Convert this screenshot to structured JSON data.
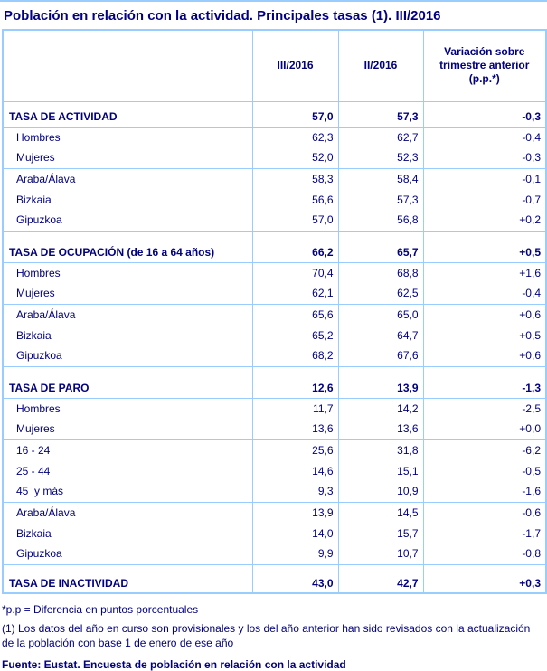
{
  "page": {
    "title": "Población en relación con la actividad. Principales tasas (1). III/2016"
  },
  "table": {
    "col_headers": [
      "III/2016",
      "II/2016",
      "Variación sobre trimestre anterior (p.p.*)"
    ],
    "sections": [
      {
        "header": {
          "label": "TASA DE ACTIVIDAD",
          "values": [
            "57,0",
            "57,3",
            "-0,3"
          ]
        },
        "rows": [
          {
            "label": "Hombres",
            "values": [
              "62,3",
              "62,7",
              "-0,4"
            ],
            "group_end": false
          },
          {
            "label": "Mujeres",
            "values": [
              "52,0",
              "52,3",
              "-0,3"
            ],
            "group_end": true
          },
          {
            "label": "Araba/Álava",
            "values": [
              "58,3",
              "58,4",
              "-0,1"
            ],
            "group_end": false
          },
          {
            "label": "Bizkaia",
            "values": [
              "56,6",
              "57,3",
              "-0,7"
            ],
            "group_end": false
          },
          {
            "label": "Gipuzkoa",
            "values": [
              "57,0",
              "56,8",
              "+0,2"
            ],
            "group_end": true
          }
        ]
      },
      {
        "header": {
          "label": "TASA DE OCUPACIÓN (de 16 a 64 años)",
          "values": [
            "66,2",
            "65,7",
            "+0,5"
          ]
        },
        "rows": [
          {
            "label": "Hombres",
            "values": [
              "70,4",
              "68,8",
              "+1,6"
            ],
            "group_end": false
          },
          {
            "label": "Mujeres",
            "values": [
              "62,1",
              "62,5",
              "-0,4"
            ],
            "group_end": true
          },
          {
            "label": "Araba/Álava",
            "values": [
              "65,6",
              "65,0",
              "+0,6"
            ],
            "group_end": false
          },
          {
            "label": "Bizkaia",
            "values": [
              "65,2",
              "64,7",
              "+0,5"
            ],
            "group_end": false
          },
          {
            "label": "Gipuzkoa",
            "values": [
              "68,2",
              "67,6",
              "+0,6"
            ],
            "group_end": true
          }
        ]
      },
      {
        "header": {
          "label": "TASA DE PARO",
          "values": [
            "12,6",
            "13,9",
            "-1,3"
          ]
        },
        "rows": [
          {
            "label": "Hombres",
            "values": [
              "11,7",
              "14,2",
              "-2,5"
            ],
            "group_end": false
          },
          {
            "label": "Mujeres",
            "values": [
              "13,6",
              "13,6",
              "+0,0"
            ],
            "group_end": true
          },
          {
            "label": "16 - 24",
            "values": [
              "25,6",
              "31,8",
              "-6,2"
            ],
            "group_end": false
          },
          {
            "label": "25 - 44",
            "values": [
              "14,6",
              "15,1",
              "-0,5"
            ],
            "group_end": false
          },
          {
            "label": "45  y más",
            "values": [
              "9,3",
              "10,9",
              "-1,6"
            ],
            "group_end": true
          },
          {
            "label": "Araba/Álava",
            "values": [
              "13,9",
              "14,5",
              "-0,6"
            ],
            "group_end": false
          },
          {
            "label": "Bizkaia",
            "values": [
              "14,0",
              "15,7",
              "-1,7"
            ],
            "group_end": false
          },
          {
            "label": "Gipuzkoa",
            "values": [
              "9,9",
              "10,7",
              "-0,8"
            ],
            "group_end": true
          }
        ]
      },
      {
        "header": {
          "label": "TASA DE INACTIVIDAD",
          "values": [
            "43,0",
            "42,7",
            "+0,3"
          ]
        },
        "rows": []
      }
    ]
  },
  "footnotes": {
    "pp_note": "*p.p = Diferencia en puntos porcentuales",
    "note_1": "(1) Los datos del año en curso son provisionales y los del año anterior han sido revisados con la actualización de la población con base 1 de enero de ese año",
    "source": "Fuente: Eustat. Encuesta de población en relación con la actividad"
  },
  "colors": {
    "text": "#000080",
    "border": "#99CCFF",
    "background": "#FFFFFF"
  }
}
